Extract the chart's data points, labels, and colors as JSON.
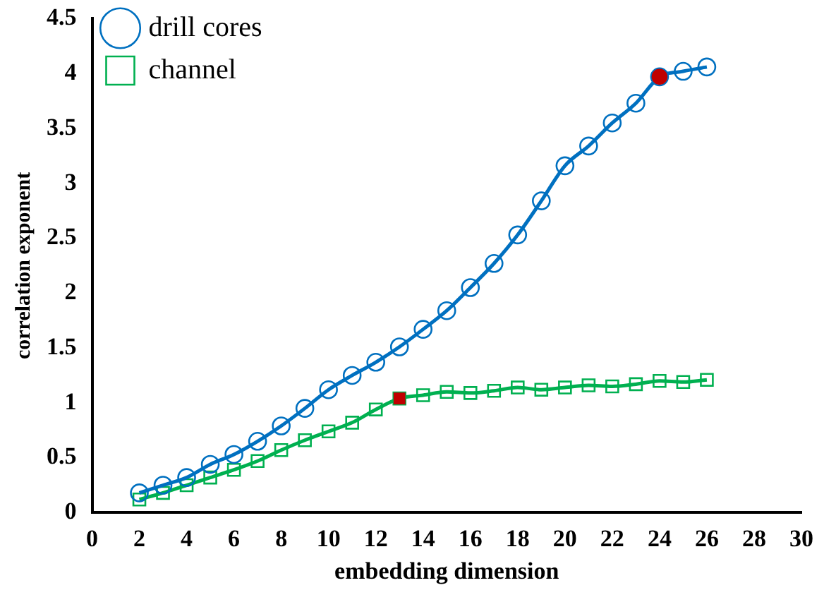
{
  "chart_data": {
    "type": "line",
    "xlabel": "embedding dimension",
    "ylabel": "correlation exponent",
    "x": [
      2,
      3,
      4,
      5,
      6,
      7,
      8,
      9,
      10,
      11,
      12,
      13,
      14,
      15,
      16,
      17,
      18,
      19,
      20,
      21,
      22,
      23,
      24,
      25,
      26
    ],
    "series": [
      {
        "name": "drill cores",
        "color": "#0070c0",
        "marker": "circle",
        "values": [
          0.18,
          0.25,
          0.32,
          0.44,
          0.53,
          0.65,
          0.79,
          0.95,
          1.12,
          1.25,
          1.37,
          1.51,
          1.67,
          1.84,
          2.05,
          2.27,
          2.53,
          2.84,
          3.16,
          3.34,
          3.55,
          3.73,
          3.97,
          4.02,
          4.06
        ]
      },
      {
        "name": "channel",
        "color": "#00b050",
        "marker": "square",
        "values": [
          0.12,
          0.18,
          0.25,
          0.32,
          0.39,
          0.47,
          0.57,
          0.66,
          0.74,
          0.82,
          0.94,
          1.04,
          1.07,
          1.1,
          1.09,
          1.11,
          1.14,
          1.12,
          1.14,
          1.16,
          1.15,
          1.17,
          1.2,
          1.19,
          1.21
        ]
      },
      {
        "type": "scatter",
        "color": "#c00000",
        "marker": "circle",
        "x": [
          24
        ],
        "values": [
          3.97
        ]
      },
      {
        "type": "scatter",
        "color": "#c00000",
        "marker": "square",
        "x": [
          13
        ],
        "values": [
          1.04
        ]
      }
    ],
    "xlim": [
      0,
      30
    ],
    "xticks": [
      0,
      2,
      4,
      6,
      8,
      10,
      12,
      14,
      16,
      18,
      20,
      22,
      24,
      26,
      28,
      30
    ],
    "ylim": [
      0,
      4.5
    ],
    "yticks": [
      0,
      0.5,
      1,
      1.5,
      2,
      2.5,
      3,
      3.5,
      4,
      4.5
    ],
    "grid": false,
    "legend": "top left",
    "line_style": "solid"
  }
}
